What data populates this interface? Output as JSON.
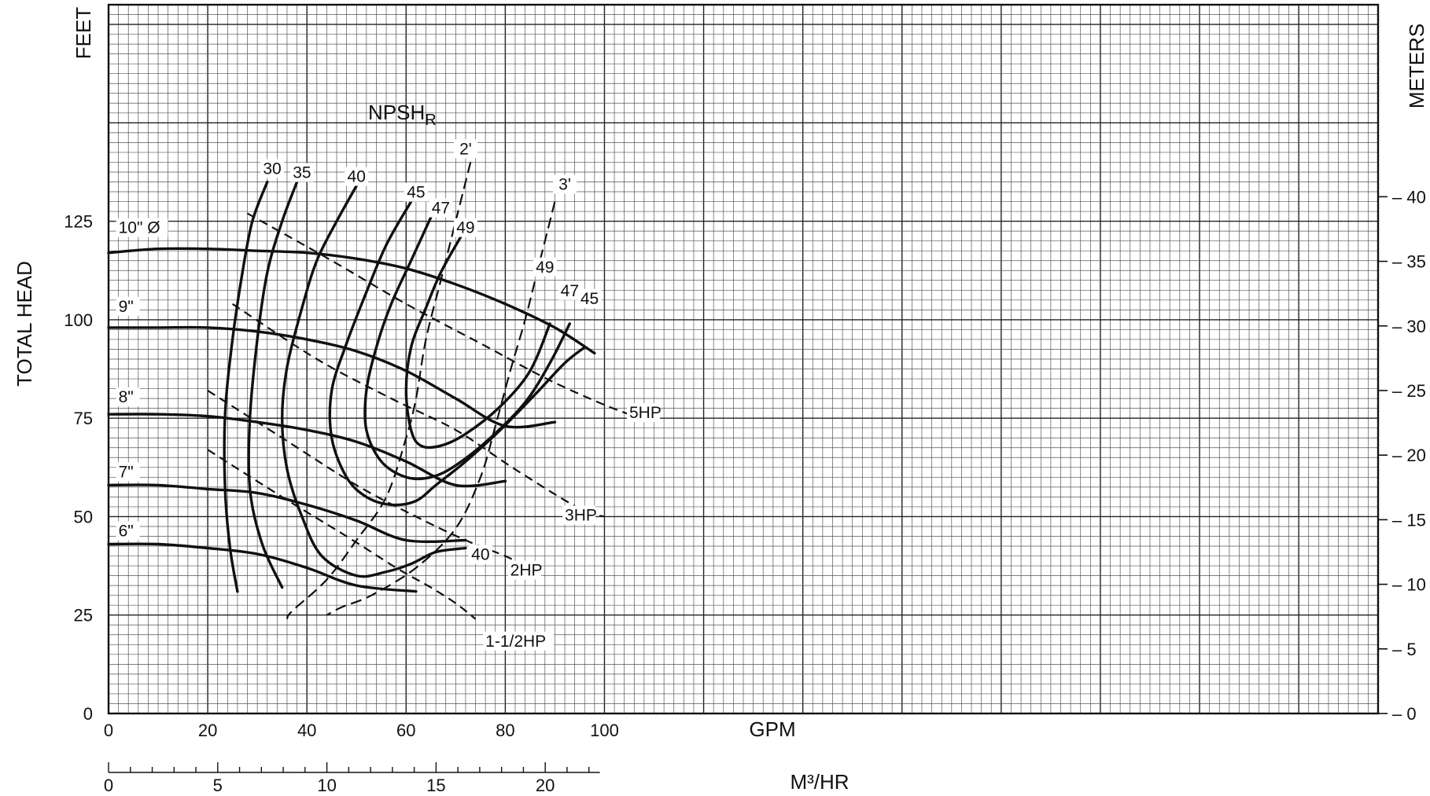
{
  "chart_data": {
    "type": "line",
    "xlabel": "GPM",
    "x2label": "M³/HR",
    "ylabel": "TOTAL HEAD",
    "y_units_left": "FEET",
    "y_units_right": "METERS",
    "xlim": [
      0,
      256
    ],
    "ylim": [
      0,
      180
    ],
    "x_ticks": [
      "0",
      "20",
      "40",
      "60",
      "80",
      "100"
    ],
    "x2_ticks": [
      "0",
      "5",
      "10",
      "15",
      "20"
    ],
    "y_ticks": [
      "0",
      "25",
      "50",
      "75",
      "100",
      "125"
    ],
    "y2_ticks": [
      "0",
      "5",
      "10",
      "15",
      "20",
      "25",
      "30",
      "35",
      "40"
    ],
    "grid": true,
    "npsh_title": "NPSH",
    "npsh_sub": "R",
    "impellers": [
      {
        "name": "10\" Ø",
        "points": [
          [
            0,
            117
          ],
          [
            10,
            118
          ],
          [
            20,
            118
          ],
          [
            30,
            117.5
          ],
          [
            40,
            117
          ],
          [
            50,
            115.5
          ],
          [
            60,
            113
          ],
          [
            70,
            109
          ],
          [
            80,
            104
          ],
          [
            90,
            98
          ],
          [
            98,
            91.5
          ]
        ]
      },
      {
        "name": "9\"",
        "points": [
          [
            0,
            98
          ],
          [
            10,
            98
          ],
          [
            20,
            98
          ],
          [
            30,
            97
          ],
          [
            40,
            95
          ],
          [
            50,
            92
          ],
          [
            60,
            87
          ],
          [
            70,
            80
          ],
          [
            80,
            73
          ],
          [
            90,
            74
          ]
        ]
      },
      {
        "name": "8\"",
        "points": [
          [
            0,
            76
          ],
          [
            10,
            76
          ],
          [
            20,
            75.5
          ],
          [
            30,
            74
          ],
          [
            40,
            72
          ],
          [
            50,
            69
          ],
          [
            60,
            64
          ],
          [
            70,
            58
          ],
          [
            80,
            59
          ]
        ]
      },
      {
        "name": "7\"",
        "points": [
          [
            0,
            58
          ],
          [
            10,
            58
          ],
          [
            20,
            57
          ],
          [
            30,
            56
          ],
          [
            40,
            53
          ],
          [
            50,
            49
          ],
          [
            60,
            44
          ],
          [
            72,
            44
          ]
        ]
      },
      {
        "name": "6\"",
        "points": [
          [
            0,
            43
          ],
          [
            10,
            43
          ],
          [
            20,
            42
          ],
          [
            30,
            40.5
          ],
          [
            40,
            37
          ],
          [
            50,
            32.5
          ],
          [
            62,
            31
          ]
        ]
      }
    ],
    "efficiency": [
      {
        "name": "30",
        "points": [
          [
            32,
            135
          ],
          [
            29,
            125
          ],
          [
            27,
            112
          ],
          [
            25,
            95
          ],
          [
            23.5,
            76
          ],
          [
            23.5,
            57
          ],
          [
            24.5,
            42
          ],
          [
            26,
            31
          ]
        ]
      },
      {
        "name": "35",
        "points": [
          [
            38,
            135
          ],
          [
            35,
            125
          ],
          [
            32,
            112
          ],
          [
            30,
            95
          ],
          [
            28.5,
            75
          ],
          [
            28.5,
            57
          ],
          [
            31,
            43
          ],
          [
            35,
            32
          ]
        ]
      },
      {
        "name": "40",
        "points": [
          [
            50,
            134
          ],
          [
            46,
            125
          ],
          [
            42,
            115
          ],
          [
            39,
            103
          ],
          [
            36,
            88
          ],
          [
            35,
            75
          ],
          [
            36,
            62
          ],
          [
            39,
            50
          ],
          [
            43,
            40
          ],
          [
            50,
            35
          ],
          [
            56,
            36
          ],
          [
            61,
            38
          ],
          [
            66,
            41
          ],
          [
            72,
            42
          ]
        ]
      },
      {
        "name": "45",
        "points": [
          [
            61,
            130
          ],
          [
            56,
            119
          ],
          [
            52,
            107
          ],
          [
            48,
            94
          ],
          [
            45,
            82
          ],
          [
            45,
            70
          ],
          [
            48,
            60
          ],
          [
            52,
            55
          ],
          [
            57,
            53
          ],
          [
            62,
            54
          ],
          [
            66,
            58
          ],
          [
            72,
            64
          ],
          [
            79,
            72
          ],
          [
            86,
            81
          ],
          [
            92,
            89
          ],
          [
            96,
            93
          ]
        ]
      },
      {
        "name": "47",
        "points": [
          [
            65,
            126
          ],
          [
            61,
            115
          ],
          [
            57,
            104
          ],
          [
            54,
            93
          ],
          [
            52,
            82
          ],
          [
            52,
            72
          ],
          [
            55,
            64
          ],
          [
            60,
            60
          ],
          [
            65,
            60
          ],
          [
            70,
            63
          ],
          [
            77,
            70
          ],
          [
            84,
            79
          ],
          [
            89,
            89
          ],
          [
            93,
            99
          ]
        ]
      },
      {
        "name": "49",
        "points": [
          [
            71,
            121
          ],
          [
            67,
            112
          ],
          [
            64,
            103
          ],
          [
            61,
            93
          ],
          [
            60,
            82
          ],
          [
            61,
            72
          ],
          [
            63,
            68
          ],
          [
            67,
            68
          ],
          [
            72,
            71
          ],
          [
            79,
            78
          ],
          [
            85,
            87
          ],
          [
            89,
            99
          ]
        ]
      }
    ],
    "hp_lines": [
      {
        "name": "5HP",
        "points": [
          [
            28,
            127
          ],
          [
            45,
            115
          ],
          [
            60,
            104
          ],
          [
            75,
            94
          ],
          [
            90,
            84
          ],
          [
            105,
            76
          ],
          [
            112,
            75
          ]
        ]
      },
      {
        "name": "3HP",
        "points": [
          [
            25,
            104
          ],
          [
            42,
            90
          ],
          [
            57,
            80
          ],
          [
            70,
            72
          ],
          [
            82,
            62
          ],
          [
            95,
            52
          ],
          [
            100,
            50
          ]
        ]
      },
      {
        "name": "2HP",
        "points": [
          [
            20,
            82
          ],
          [
            35,
            70
          ],
          [
            50,
            58
          ],
          [
            62,
            50
          ],
          [
            72,
            44
          ],
          [
            80,
            40
          ],
          [
            83,
            38
          ]
        ]
      },
      {
        "name": "1-1/2HP",
        "points": [
          [
            20,
            67
          ],
          [
            35,
            55
          ],
          [
            48,
            45
          ],
          [
            58,
            37
          ],
          [
            65,
            32
          ],
          [
            70,
            28
          ],
          [
            74,
            24
          ]
        ]
      }
    ],
    "npsh_lines": [
      {
        "name": "2'",
        "points": [
          [
            73,
            140
          ],
          [
            70,
            125
          ],
          [
            67,
            110
          ],
          [
            64,
            95
          ],
          [
            62,
            80
          ],
          [
            60,
            70
          ],
          [
            56,
            55
          ],
          [
            50,
            44
          ],
          [
            44,
            34
          ],
          [
            37,
            26
          ],
          [
            36,
            24
          ]
        ]
      },
      {
        "name": "3'",
        "points": [
          [
            90,
            130
          ],
          [
            87,
            115
          ],
          [
            84,
            100
          ],
          [
            81,
            87
          ],
          [
            78,
            73
          ],
          [
            75,
            60
          ],
          [
            70,
            47
          ],
          [
            62,
            37
          ],
          [
            53,
            30
          ],
          [
            47,
            27
          ],
          [
            44,
            25
          ]
        ]
      }
    ],
    "labels": {
      "impellers": [
        "10\" Ø",
        "9\"",
        "8\"",
        "7\"",
        "6\""
      ],
      "eff_top": [
        "30",
        "35",
        "40",
        "45",
        "47",
        "49"
      ],
      "eff_right": [
        "49",
        "47",
        "45",
        "40"
      ],
      "hp": [
        "5HP",
        "3HP",
        "2HP",
        "1-1/2HP"
      ],
      "npsh": [
        "2'",
        "3'"
      ]
    }
  }
}
